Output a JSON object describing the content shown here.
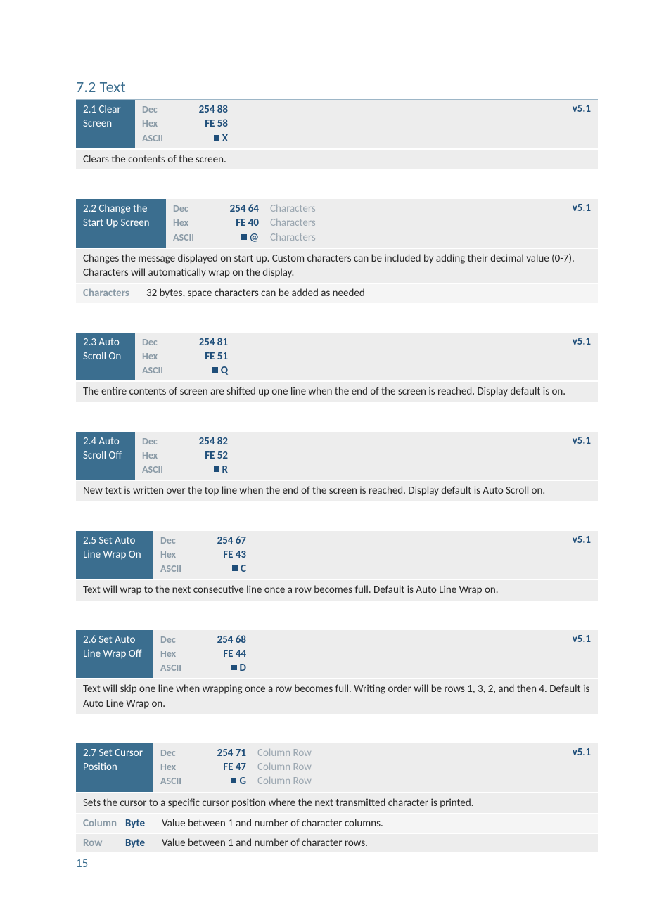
{
  "page_number": "15",
  "section": {
    "title": "7.2 Text"
  },
  "colors": {
    "heading": "#3b6e8f",
    "hdr_bg": "#3b6e8f",
    "hdr_fg": "#ffffff",
    "grey_bg": "#ededed",
    "grey_bg_alt": "#f5f5f5",
    "label_grey": "#8a9aa6",
    "value_blue": "#1f4e79",
    "arg_grey": "#9aa6b0",
    "text": "#262626",
    "rule": "#9db6c7"
  },
  "labels": {
    "dec": "Dec",
    "hex": "Hex",
    "ascii": "ASCII"
  },
  "commands": [
    {
      "title_w": 84,
      "title": "2.1 Clear Screen",
      "version": "v5.1",
      "dec": "254 88",
      "hex": "FE 58",
      "ascii": "■ X",
      "args": null,
      "desc": "Clears the contents of the screen.",
      "params": []
    },
    {
      "title_w": 128,
      "title": "2.2 Change the Start Up Screen",
      "version": "v5.1",
      "dec": "254 64",
      "hex": "FE 40",
      "ascii": "■ @",
      "args": "Characters",
      "desc": "Changes the message displayed on start up.  Custom characters can be included by adding their decimal value (0-7).  Characters will automatically wrap on the display.",
      "params": [
        {
          "name": "Characters",
          "type": "",
          "desc": "32 bytes, space characters can be added as needed",
          "alt": true,
          "name_w": 94
        }
      ]
    },
    {
      "title_w": 84,
      "title": "2.3 Auto Scroll On",
      "version": "v5.1",
      "dec": "254 81",
      "hex": "FE 51",
      "ascii": "■ Q",
      "args": null,
      "desc": "The entire contents of screen are shifted up one line when the end of the screen is reached.  Display default is on.",
      "params": []
    },
    {
      "title_w": 84,
      "title": "2.4 Auto Scroll Off",
      "version": "v5.1",
      "dec": "254 82",
      "hex": "FE 52",
      "ascii": "■ R",
      "args": null,
      "desc": "New text is written over the top line when the end of the screen is reached.  Display default is Auto Scroll on.",
      "params": []
    },
    {
      "title_w": 110,
      "title": "2.5 Set Auto Line Wrap On",
      "version": "v5.1",
      "dec": "254 67",
      "hex": "FE 43",
      "ascii": "■ C",
      "args": null,
      "desc": "Text will wrap to the next consecutive line once a row becomes full.  Default is Auto Line Wrap on.",
      "params": []
    },
    {
      "title_w": 110,
      "title": "2.6 Set Auto Line Wrap Off",
      "version": "v5.1",
      "dec": "254 68",
      "hex": "FE 44",
      "ascii": "■ D",
      "args": null,
      "desc": "Text will skip one line when wrapping once a row becomes full.  Writing order will be rows 1, 3, 2, and then 4.  Default is Auto Line Wrap on.",
      "params": []
    },
    {
      "title_w": 110,
      "title": "2.7 Set Cursor Position",
      "version": "v5.1",
      "dec": "254 71",
      "hex": "FE 47",
      "ascii": "■ G",
      "args": "Column  Row",
      "desc": "Sets the cursor to a specific cursor position where the next transmitted character is printed.",
      "params": [
        {
          "name": "Column",
          "type": "Byte",
          "desc": "Value between 1 and number of character columns.",
          "alt": true,
          "name_w": 70
        },
        {
          "name": "Row",
          "type": "Byte",
          "desc": "Value between 1 and number of character rows.",
          "alt": false,
          "name_w": 70
        }
      ]
    }
  ]
}
